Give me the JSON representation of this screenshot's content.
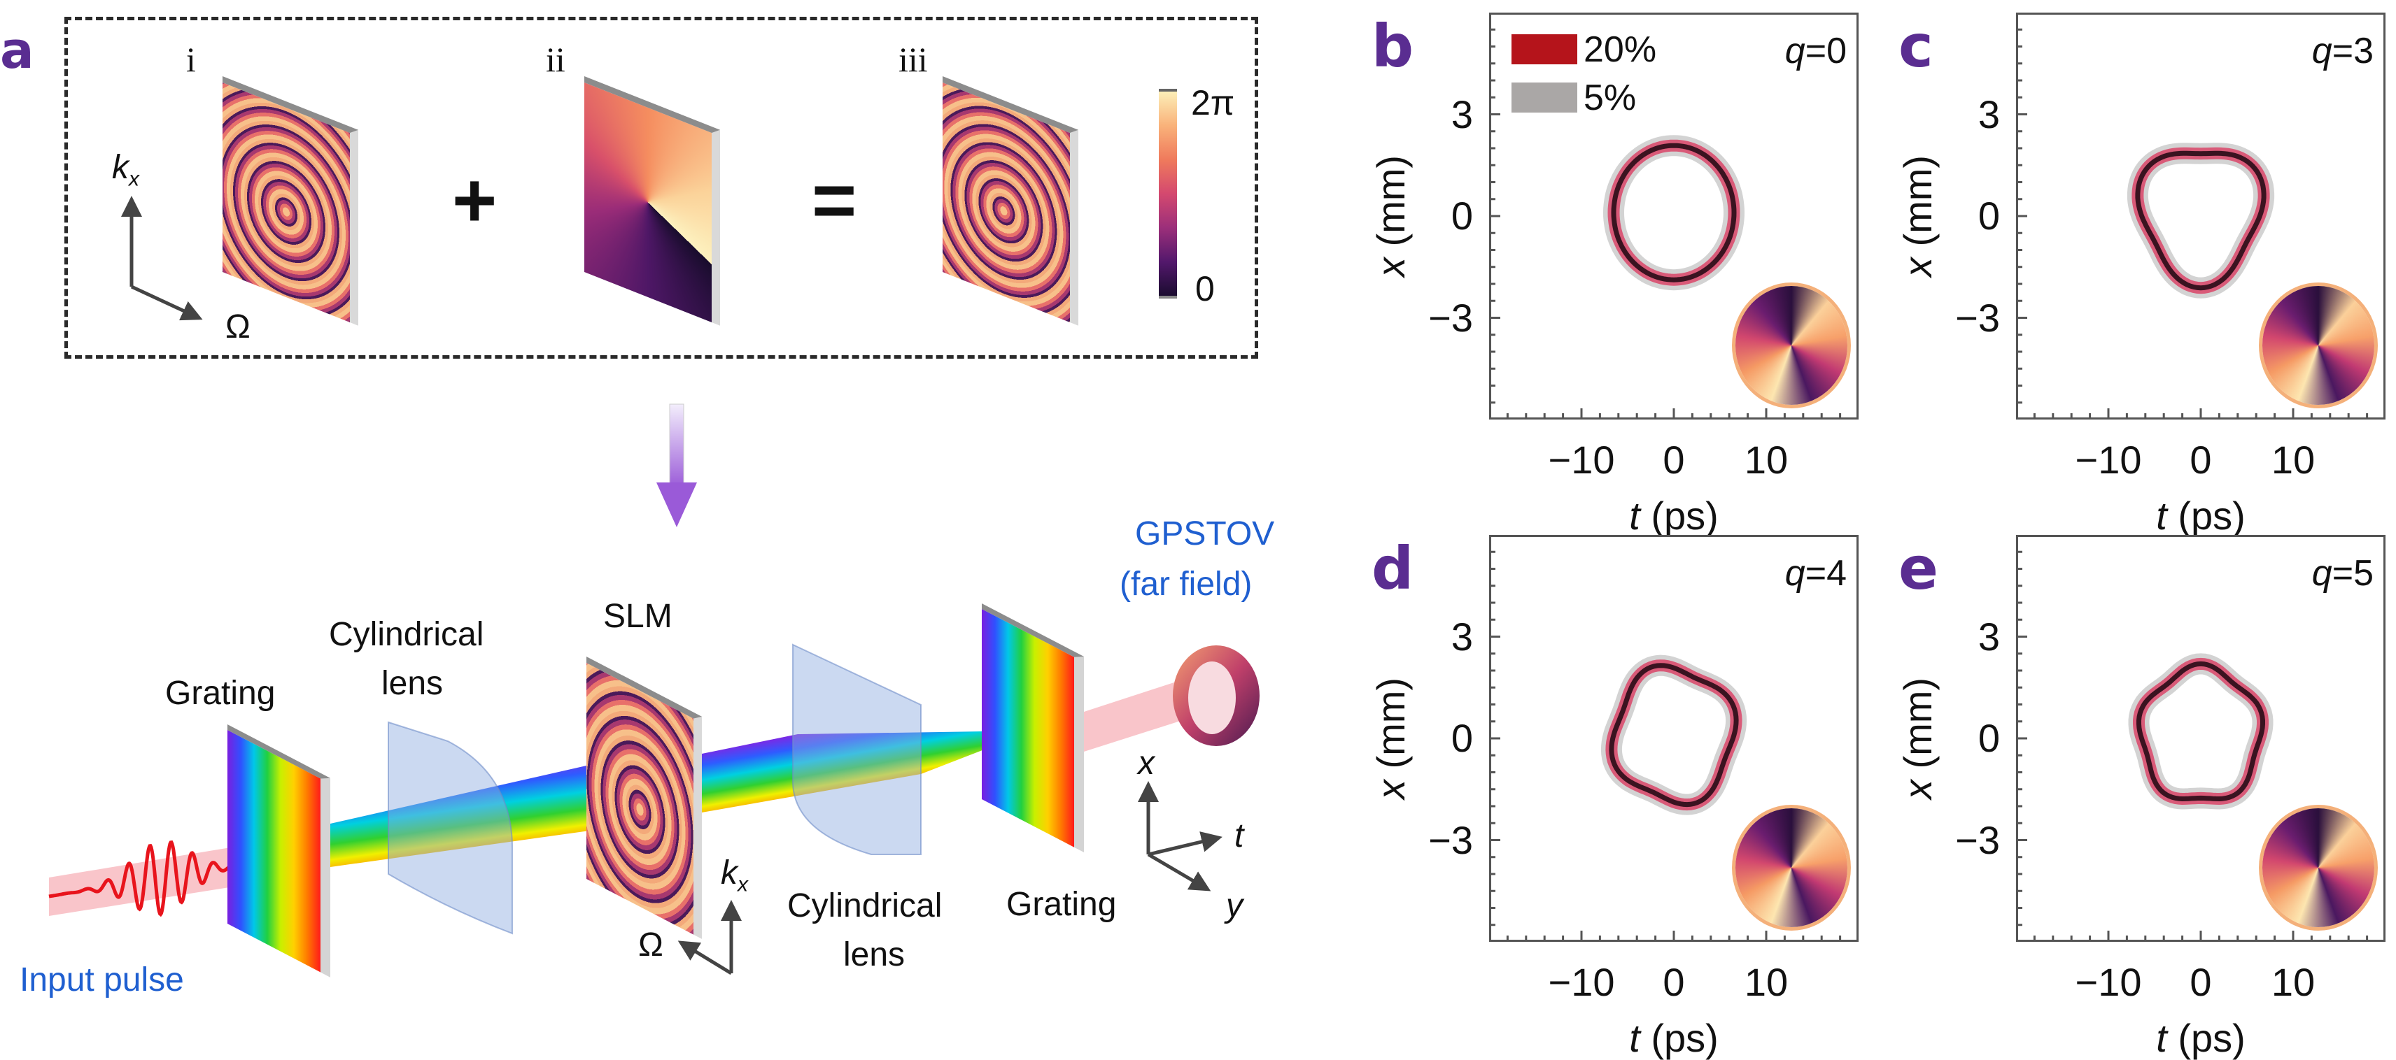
{
  "panel_labels": {
    "a": "a",
    "b": "b",
    "c": "c",
    "d": "d",
    "e": "e"
  },
  "panel_a": {
    "top": {
      "plate_labels": [
        "i",
        "ii",
        "iii"
      ],
      "plus": "+",
      "equals": "=",
      "colorbar": {
        "max_label": "2π",
        "min_label": "0"
      },
      "axes": {
        "vertical": "k",
        "vertical_sub": "x",
        "horizontal": "Ω"
      }
    },
    "setup": {
      "grating_1": "Grating",
      "lens_1": {
        "line1": "Cylindrical",
        "line2": "lens"
      },
      "slm": "SLM",
      "lens_2": {
        "line1": "Cylindrical",
        "line2": "lens"
      },
      "grating_2": "Grating",
      "output": {
        "line1": "GPSTOV",
        "line2": "(far field)"
      },
      "input": "Input pulse",
      "axes_kx": {
        "vertical": "k",
        "vertical_sub": "x",
        "diagonal": "Ω"
      },
      "axes_xyt": {
        "x": "x",
        "t": "t",
        "y": "y"
      }
    },
    "colors": {
      "label_blue": "#1f5fd0",
      "panel_letter": "#5a2d91"
    }
  },
  "chart_data": [
    {
      "panel": "b",
      "type": "contour",
      "q_var": "q",
      "q_value": "=0",
      "q": 0,
      "xlabel_var": "t",
      "xlabel_unit": "(ps)",
      "ylabel_var": "x",
      "ylabel_unit": "(mm)",
      "xlim": [
        -20,
        20
      ],
      "ylim": [
        -6,
        6
      ],
      "xticks": [
        "−10",
        "0",
        "10"
      ],
      "xtick_values": [
        -10,
        0,
        10
      ],
      "yticks": [
        "3",
        "0",
        "−3"
      ],
      "ytick_values": [
        3,
        0,
        -3
      ],
      "legend": [
        {
          "label": "20%",
          "color": "#b5141b"
        },
        {
          "label": "5%",
          "color": "#aaa7a6"
        }
      ]
    },
    {
      "panel": "c",
      "type": "contour",
      "q_var": "q",
      "q_value": "=3",
      "q": 3,
      "xlabel_var": "t",
      "xlabel_unit": "(ps)",
      "ylabel_var": "x",
      "ylabel_unit": "(mm)",
      "xlim": [
        -20,
        20
      ],
      "ylim": [
        -6,
        6
      ],
      "xticks": [
        "−10",
        "0",
        "10"
      ],
      "xtick_values": [
        -10,
        0,
        10
      ],
      "yticks": [
        "3",
        "0",
        "−3"
      ],
      "ytick_values": [
        3,
        0,
        -3
      ]
    },
    {
      "panel": "d",
      "type": "contour",
      "q_var": "q",
      "q_value": "=4",
      "q": 4,
      "xlabel_var": "t",
      "xlabel_unit": "(ps)",
      "ylabel_var": "x",
      "ylabel_unit": "(mm)",
      "xlim": [
        -20,
        20
      ],
      "ylim": [
        -6,
        6
      ],
      "xticks": [
        "−10",
        "0",
        "10"
      ],
      "xtick_values": [
        -10,
        0,
        10
      ],
      "yticks": [
        "3",
        "0",
        "−3"
      ],
      "ytick_values": [
        3,
        0,
        -3
      ]
    },
    {
      "panel": "e",
      "type": "contour",
      "q_var": "q",
      "q_value": "=5",
      "q": 5,
      "xlabel_var": "t",
      "xlabel_unit": "(ps)",
      "ylabel_var": "x",
      "ylabel_unit": "(mm)",
      "xlim": [
        -20,
        20
      ],
      "ylim": [
        -6,
        6
      ],
      "xticks": [
        "−10",
        "0",
        "10"
      ],
      "xtick_values": [
        -10,
        0,
        10
      ],
      "yticks": [
        "3",
        "0",
        "−3"
      ],
      "ytick_values": [
        3,
        0,
        -3
      ]
    }
  ]
}
